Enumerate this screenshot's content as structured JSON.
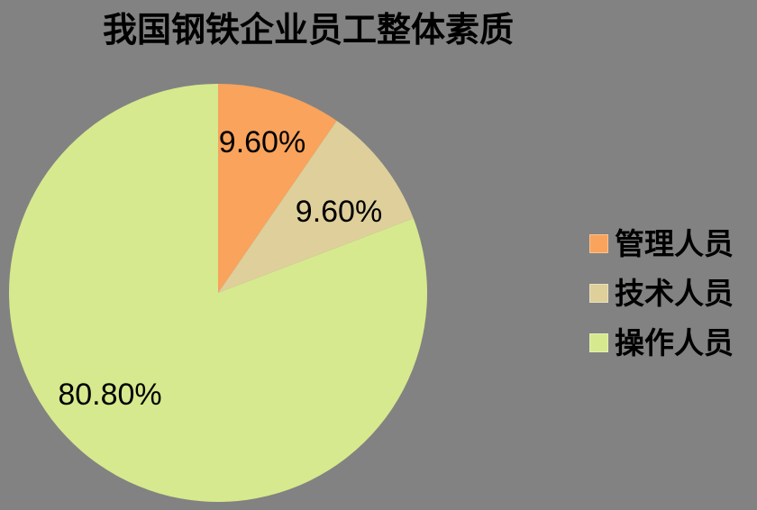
{
  "page": {
    "background": "#828282"
  },
  "chart_data": {
    "type": "pie",
    "title": "我国钢铁企业员工整体素质",
    "legend_position": "right",
    "start_angle_deg": 0,
    "direction": "clockwise",
    "background": "#828282",
    "series": [
      {
        "name": "管理人员",
        "value": 9.6,
        "label": "9.60%",
        "color": "#F9A35C"
      },
      {
        "name": "技术人员",
        "value": 9.6,
        "label": "9.60%",
        "color": "#DECF9B"
      },
      {
        "name": "操作人员",
        "value": 80.8,
        "label": "80.80%",
        "color": "#D6E98E"
      }
    ]
  }
}
